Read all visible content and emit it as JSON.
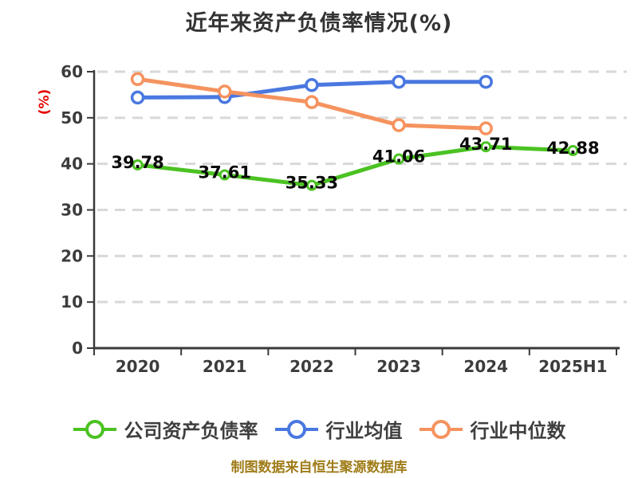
{
  "chart_data": {
    "type": "line",
    "title": "近年来资产负债率情况(%)",
    "categories": [
      "2020",
      "2021",
      "2022",
      "2023",
      "2024",
      "2025H1"
    ],
    "series": [
      {
        "name": "公司资产负债率",
        "color": "#4bc222",
        "values": [
          39.78,
          37.61,
          35.33,
          41.06,
          43.71,
          42.88
        ],
        "show_value_labels": true
      },
      {
        "name": "行业均值",
        "color": "#4a78e0",
        "values": [
          54.4,
          54.5,
          57.1,
          57.8,
          57.8,
          null
        ],
        "show_value_labels": false
      },
      {
        "name": "行业中位数",
        "color": "#f5935f",
        "values": [
          58.4,
          55.7,
          53.4,
          48.4,
          47.7,
          null
        ],
        "show_value_labels": false
      }
    ],
    "xlabel": "",
    "ylabel": "(%)",
    "ylim": [
      0,
      60
    ],
    "yticks": [
      0,
      10,
      20,
      30,
      40,
      50,
      60
    ],
    "grid": {
      "horizontal": true,
      "style": "dashed",
      "color": "#d8d8d8"
    },
    "legend_position": "bottom"
  },
  "style": {
    "background": "#ffffff",
    "title_color": "#333333",
    "axis_color": "#3a3a3a",
    "tick_label_color": "#3c3c3c",
    "data_label_color": "#0a0a0a",
    "ylabel_color": "#e60000",
    "legend_text_color": "#3f3f3f"
  },
  "footer": {
    "text": "制图数据来自恒生聚源数据库",
    "color": "#9f7c18"
  }
}
